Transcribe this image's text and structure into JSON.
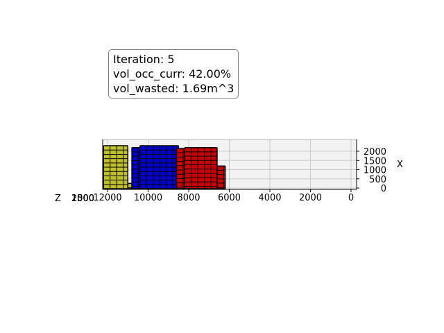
{
  "info": {
    "iteration": "Iteration: 5",
    "vol_occ": "vol_occ_curr: 42.00%",
    "vol_wasted": "vol_wasted: 1.69m^3"
  },
  "chart_data": {
    "type": "3d-bar",
    "title": "",
    "axes": {
      "y": {
        "label": "",
        "ticks": [
          12000,
          10000,
          8000,
          6000,
          4000,
          2000,
          0
        ],
        "lim": [
          12400,
          0
        ]
      },
      "x": {
        "label": "X",
        "ticks": [
          0,
          500,
          1000,
          1500,
          2000
        ],
        "lim": [
          0,
          2350
        ]
      },
      "z": {
        "label": "Z",
        "ticks": [
          0,
          500,
          1000,
          1500,
          2000
        ],
        "tick_labels": [
          "0",
          "500",
          "1000",
          "1500",
          "2000"
        ]
      }
    },
    "grid": true,
    "colors": {
      "yellow": "#bfbf2a",
      "blue": "#0000cc",
      "red": "#cc0000",
      "edge": "#000000",
      "pane": "#f2f2f2",
      "grid": "#cccccc"
    },
    "series": [
      {
        "name": "",
        "color": "yellow",
        "y_range": [
          12200,
          11000
        ],
        "x_top": 2300
      },
      {
        "name": "",
        "color": "yellow",
        "y_range": [
          11000,
          10800
        ],
        "x_top": 250
      },
      {
        "name": "",
        "color": "blue",
        "y_range": [
          10800,
          10400
        ],
        "x_top": 2200
      },
      {
        "name": "",
        "color": "blue",
        "y_range": [
          10400,
          8500
        ],
        "x_top": 2300
      },
      {
        "name": "",
        "color": "blue",
        "y_range": [
          8500,
          8200
        ],
        "x_top": 1800
      },
      {
        "name": "",
        "color": "red",
        "y_range": [
          8600,
          8200
        ],
        "x_top": 2150
      },
      {
        "name": "",
        "color": "red",
        "y_range": [
          8200,
          6600
        ],
        "x_top": 2200
      },
      {
        "name": "",
        "color": "red",
        "y_range": [
          6600,
          6200
        ],
        "x_top": 1200
      }
    ]
  }
}
